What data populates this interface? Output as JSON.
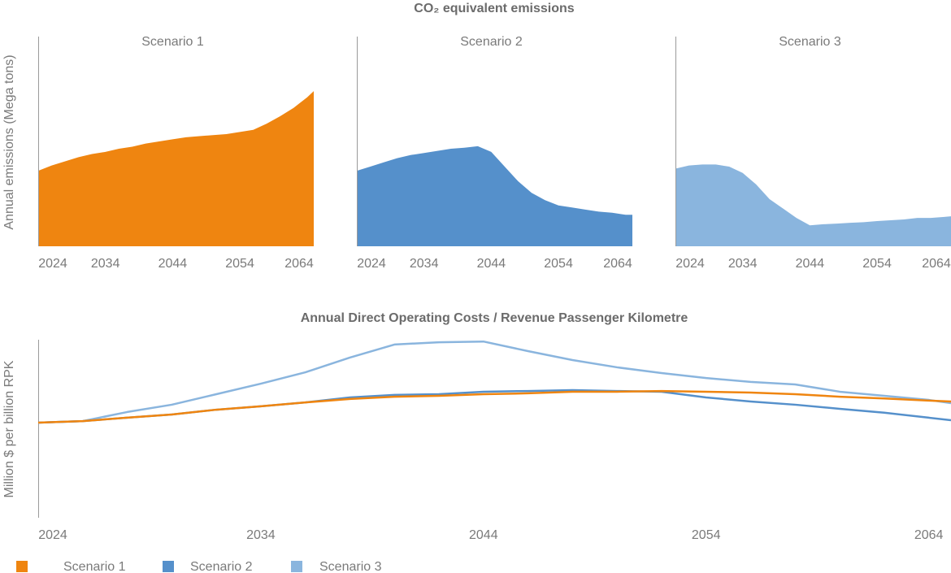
{
  "chart_data": [
    {
      "type": "area",
      "title": "CO₂ equivalent emissions",
      "ylabel": "Annual emissions (Mega tons)",
      "x": [
        2024,
        2026,
        2028,
        2030,
        2032,
        2034,
        2036,
        2038,
        2040,
        2042,
        2044,
        2046,
        2048,
        2050,
        2052,
        2054,
        2056,
        2058,
        2060,
        2062,
        2064,
        2065
      ],
      "xlim": [
        2024,
        2065
      ],
      "xticks": [
        2024,
        2034,
        2044,
        2054,
        2064
      ],
      "ylim": [
        0,
        100
      ],
      "series": [
        {
          "name": "Scenario 1",
          "color": "#ef8510",
          "values": [
            36,
            38.5,
            40.5,
            42.5,
            44,
            45,
            46.5,
            47.5,
            49,
            50,
            51,
            52,
            52.5,
            53,
            53.5,
            54.5,
            55.5,
            58.5,
            62,
            66,
            71,
            74
          ]
        },
        {
          "name": "Scenario 2",
          "color": "#5590cb",
          "values": [
            36,
            38,
            40,
            42,
            43.5,
            44.5,
            45.5,
            46.5,
            47,
            47.7,
            45,
            38,
            31,
            25.5,
            22,
            19.5,
            18.5,
            17.5,
            16.5,
            16,
            15,
            15
          ]
        },
        {
          "name": "Scenario 3",
          "color": "#8ab5de",
          "values": [
            37,
            38.5,
            39,
            39,
            38,
            35,
            29.5,
            22.5,
            18,
            13.5,
            10,
            10.5,
            10.8,
            11.2,
            11.5,
            12,
            12.4,
            12.8,
            13.5,
            13.5,
            14,
            14.3
          ]
        }
      ]
    },
    {
      "type": "line",
      "title": "Annual Direct Operating Costs / Revenue Passenger Kilometre",
      "ylabel": "Million $ per billion RPK",
      "x": [
        2024,
        2026,
        2028,
        2030,
        2032,
        2034,
        2036,
        2038,
        2040,
        2042,
        2044,
        2046,
        2048,
        2050,
        2052,
        2054,
        2056,
        2058,
        2060,
        2062,
        2064,
        2065
      ],
      "xlim": [
        2024,
        2065
      ],
      "xticks": [
        2024,
        2034,
        2044,
        2054,
        2064
      ],
      "ylim": [
        0,
        100
      ],
      "series": [
        {
          "name": "Scenario 3",
          "color": "#8ab5de",
          "values": [
            53.4,
            54.3,
            59.4,
            63.5,
            69.4,
            75.3,
            81.7,
            90,
            97.3,
            98.6,
            99,
            93.6,
            88.6,
            84.5,
            81.3,
            78.5,
            76.3,
            74.9,
            70.8,
            68.5,
            66.2,
            64.4
          ]
        },
        {
          "name": "Scenario 2",
          "color": "#5590cb",
          "values": [
            53.4,
            54.3,
            56.2,
            58,
            60.7,
            62.6,
            64.8,
            67.6,
            69,
            69.4,
            70.8,
            71.2,
            71.7,
            71.2,
            70.8,
            67.6,
            65.3,
            63.5,
            61.2,
            59,
            56.2,
            54.8
          ]
        },
        {
          "name": "Scenario 1",
          "color": "#ef8510",
          "values": [
            53.4,
            54.3,
            56.2,
            58,
            60.7,
            62.6,
            64.8,
            66.7,
            68,
            68.5,
            69.4,
            69.9,
            70.8,
            70.8,
            71.2,
            70.8,
            70.3,
            69.4,
            68,
            67,
            65.8,
            65.3
          ]
        }
      ]
    }
  ]
}
